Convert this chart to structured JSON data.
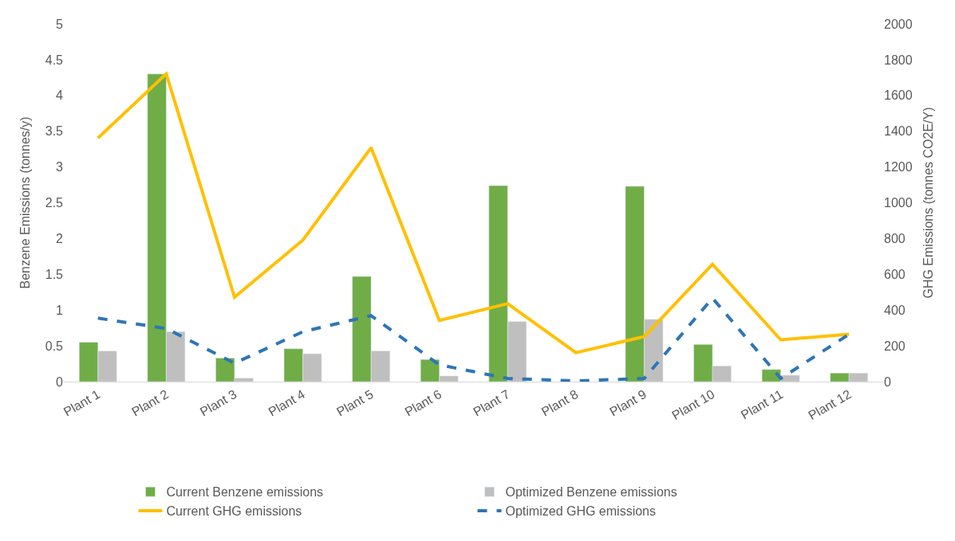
{
  "chart_data": {
    "type": "bar",
    "categories": [
      "Plant 1",
      "Plant 2",
      "Plant 3",
      "Plant 4",
      "Plant 5",
      "Plant 6",
      "Plant 7",
      "Plant 8",
      "Plant 9",
      "Plant 10",
      "Plant 11",
      "Plant 12"
    ],
    "ylabel": "Benzene Emissions (tonnes/y)",
    "y2label": "GHG Emissions (tonnes CO2E/Y)",
    "ylim": [
      0,
      5
    ],
    "yticks": [
      0,
      0.5,
      1,
      1.5,
      2,
      2.5,
      3,
      3.5,
      4,
      4.5,
      5
    ],
    "y2lim": [
      0,
      2000
    ],
    "y2ticks": [
      0,
      200,
      400,
      600,
      800,
      1000,
      1200,
      1400,
      1600,
      1800,
      2000
    ],
    "legend": "bottom",
    "series": [
      {
        "name": "Current Benzene emissions",
        "color": "#70ad47",
        "values": [
          0.55,
          4.3,
          0.33,
          0.46,
          1.47,
          0.31,
          2.74,
          null,
          2.73,
          0.52,
          0.17,
          0.12
        ]
      },
      {
        "name": "Optimized Benzene emissions",
        "color": "#bfbfbf",
        "values": [
          0.43,
          0.7,
          0.05,
          0.39,
          0.43,
          0.08,
          0.84,
          null,
          0.87,
          0.22,
          0.09,
          0.12
        ]
      },
      {
        "name": "Current GHG emissions",
        "type": "line",
        "axis": "y2",
        "color": "#ffc000",
        "line_style": "solid",
        "values": [
          1362,
          1721,
          472,
          791,
          1308,
          342,
          436,
          162,
          252,
          656,
          234,
          265
        ]
      },
      {
        "name": "Optimized GHG emissions",
        "type": "line",
        "axis": "y2",
        "color": "#2e75b6",
        "line_style": "dashed",
        "values": [
          355,
          297,
          103,
          279,
          369,
          94,
          18,
          4,
          18,
          467,
          18,
          265
        ]
      }
    ]
  }
}
